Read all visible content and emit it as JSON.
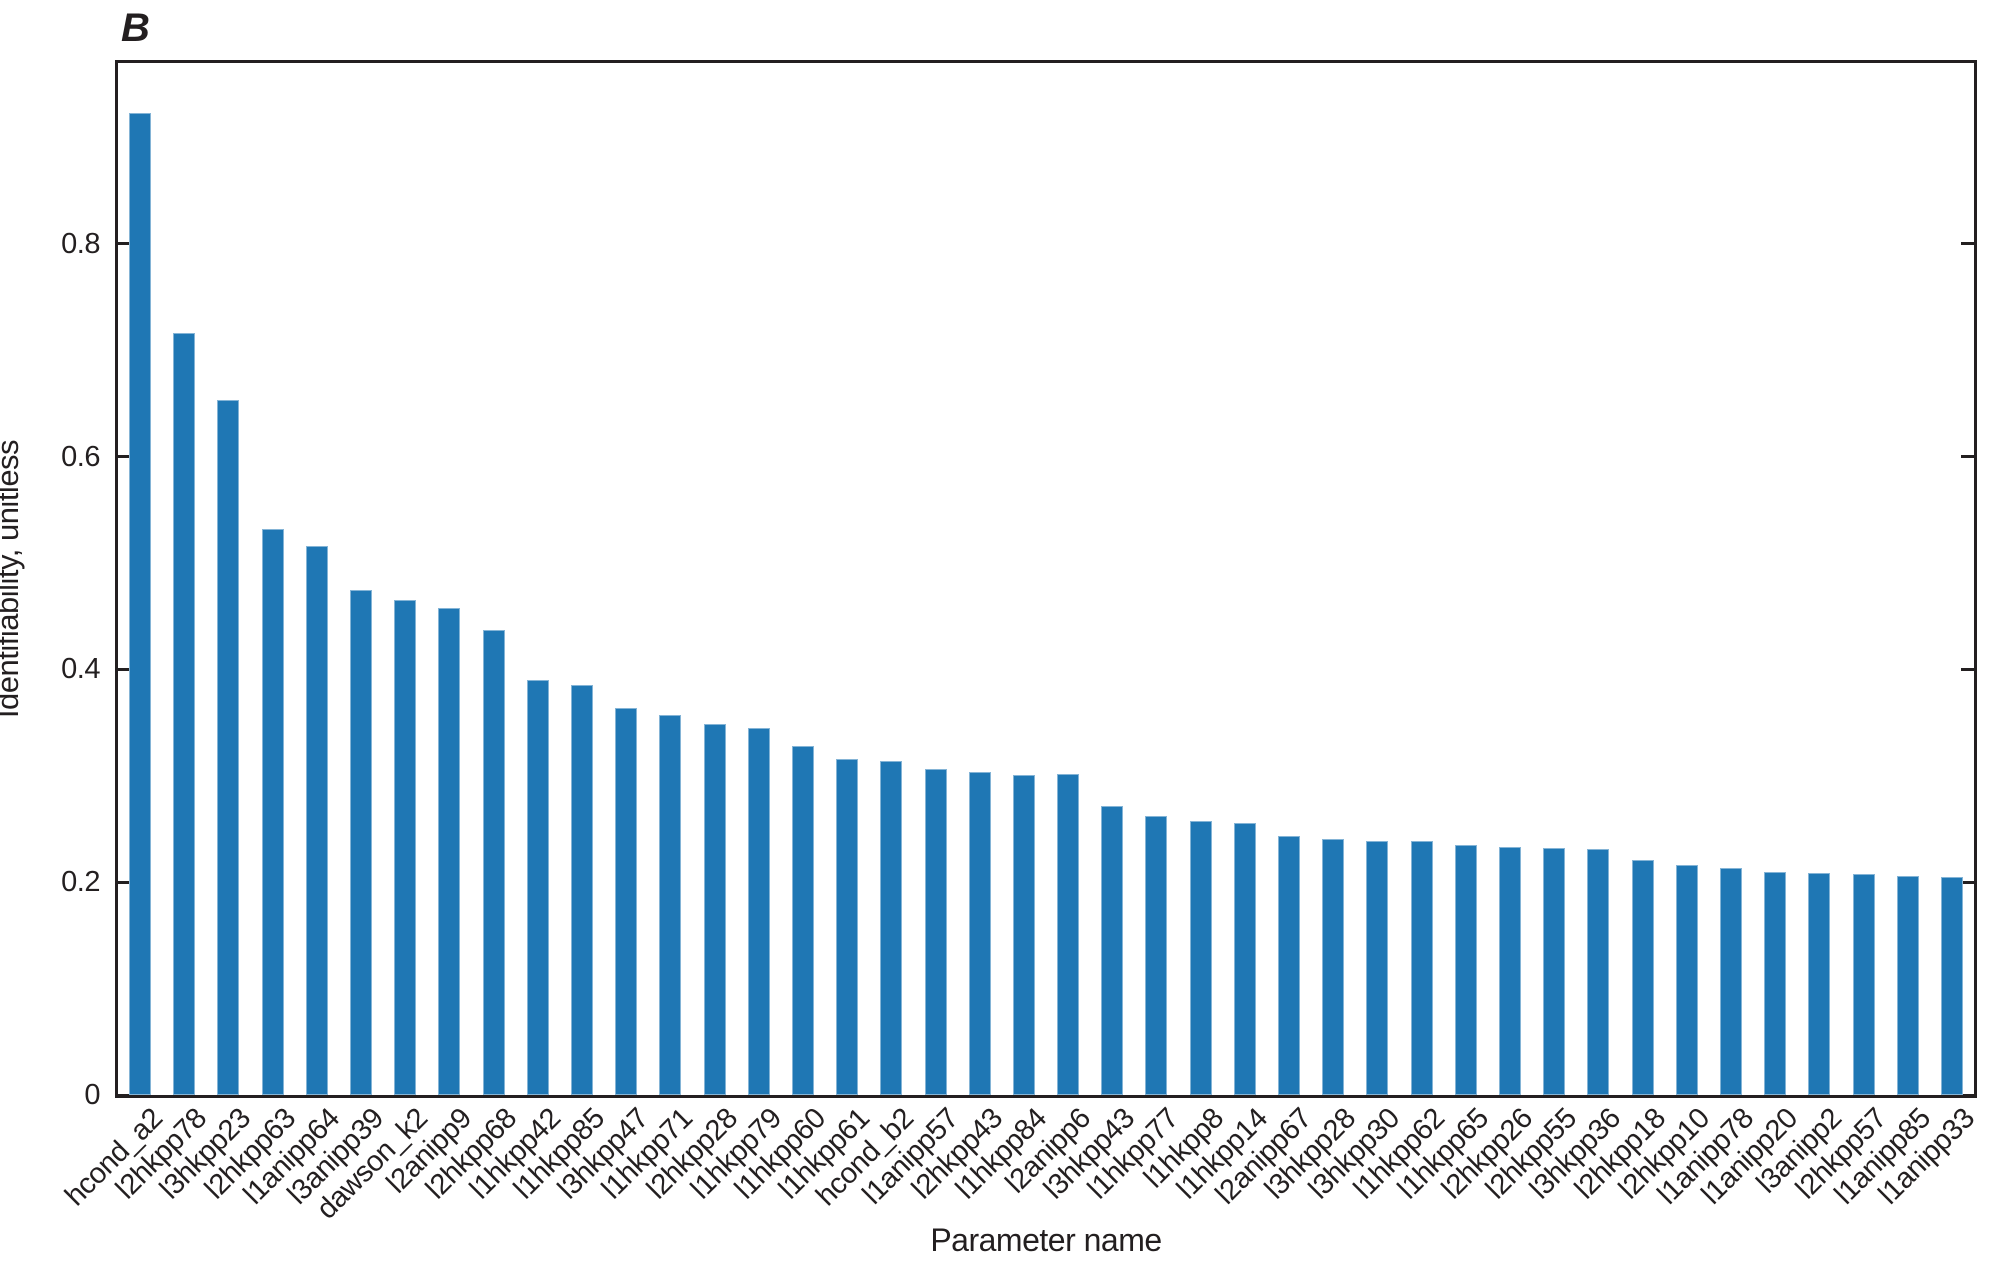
{
  "chart_data": {
    "type": "bar",
    "title": "B",
    "xlabel": "Parameter name",
    "ylabel": "Identifiability, unitless",
    "ylim": [
      0,
      0.97
    ],
    "yticks": [
      "0",
      "0.2",
      "0.4",
      "0.6",
      "0.8"
    ],
    "grid": false,
    "legend": "none",
    "bar_color": "#1f77b4",
    "axis_color": "#231f20",
    "categories": [
      "hcond_a2",
      "l2hkpp78",
      "l3hkpp23",
      "l2hkpp63",
      "l1anipp64",
      "l3anipp39",
      "dawson_k2",
      "l2anipp9",
      "l2hkpp68",
      "l1hkpp42",
      "l1hkpp85",
      "l3hkpp47",
      "l1hkpp71",
      "l2hkpp28",
      "l1hkpp79",
      "l1hkpp60",
      "l1hkpp61",
      "hcond_b2",
      "l1anipp57",
      "l2hkpp43",
      "l1hkpp84",
      "l2anipp6",
      "l3hkpp43",
      "l1hkpp77",
      "l1hkpp8",
      "l1hkpp14",
      "l2anipp67",
      "l3hkpp28",
      "l3hkpp30",
      "l1hkpp62",
      "l1hkpp65",
      "l2hkpp26",
      "l2hkpp55",
      "l3hkpp36",
      "l2hkpp18",
      "l2hkpp10",
      "l1anipp78",
      "l1anipp20",
      "l3anipp2",
      "l2hkpp57",
      "l1anipp85",
      "l1anipp33"
    ],
    "values": [
      0.923,
      0.716,
      0.653,
      0.532,
      0.516,
      0.475,
      0.465,
      0.458,
      0.437,
      0.39,
      0.385,
      0.364,
      0.357,
      0.349,
      0.345,
      0.328,
      0.316,
      0.314,
      0.306,
      0.304,
      0.301,
      0.302,
      0.272,
      0.262,
      0.258,
      0.256,
      0.243,
      0.241,
      0.239,
      0.239,
      0.235,
      0.233,
      0.232,
      0.231,
      0.221,
      0.216,
      0.213,
      0.21,
      0.209,
      0.208,
      0.206,
      0.205
    ]
  }
}
